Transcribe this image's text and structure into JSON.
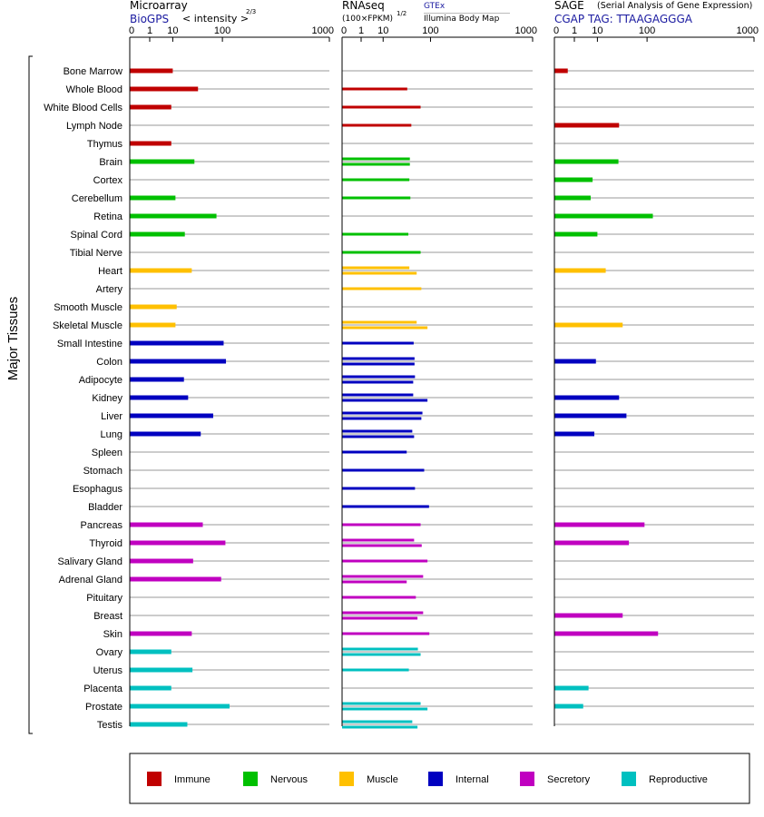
{
  "y_axis_label": "Major Tissues",
  "panels": {
    "microarray": {
      "title": "Microarray",
      "source": "BioGPS",
      "unit": "< intensity >",
      "exponent": "2/3"
    },
    "rnaseq": {
      "title": "RNAseq",
      "unit": "(100×FPKM)",
      "exponent": "1/2",
      "source_a": "GTEx",
      "source_b": "Illumina Body Map"
    },
    "sage": {
      "title": "SAGE",
      "subtitle": "(Serial Analysis of Gene Expression)",
      "tag": "CGAP TAG: TTAAGAGGGA"
    }
  },
  "legend": [
    {
      "key": "immune",
      "label": "Immune",
      "color": "#c00000"
    },
    {
      "key": "nervous",
      "label": "Nervous",
      "color": "#00c000"
    },
    {
      "key": "muscle",
      "label": "Muscle",
      "color": "#ffc000"
    },
    {
      "key": "internal",
      "label": "Internal",
      "color": "#0000c0"
    },
    {
      "key": "secretory",
      "label": "Secretory",
      "color": "#c000c0"
    },
    {
      "key": "reproductive",
      "label": "Reproductive",
      "color": "#00c0c0"
    }
  ],
  "chart_data": {
    "type": "bar",
    "orientation": "horizontal",
    "xscale": "power",
    "ticks": [
      "0",
      "1",
      "10",
      "100",
      "1000"
    ],
    "tick_values": [
      0,
      1,
      10,
      100,
      1000
    ],
    "xlim": [
      0,
      1000
    ],
    "categories": [
      "Bone Marrow",
      "Whole Blood",
      "White Blood Cells",
      "Lymph Node",
      "Thymus",
      "Brain",
      "Cortex",
      "Cerebellum",
      "Retina",
      "Spinal Cord",
      "Tibial Nerve",
      "Heart",
      "Artery",
      "Smooth Muscle",
      "Skeletal Muscle",
      "Small Intestine",
      "Colon",
      "Adipocyte",
      "Kidney",
      "Liver",
      "Lung",
      "Spleen",
      "Stomach",
      "Esophagus",
      "Bladder",
      "Pancreas",
      "Thyroid",
      "Salivary Gland",
      "Adrenal Gland",
      "Pituitary",
      "Breast",
      "Skin",
      "Ovary",
      "Uterus",
      "Placenta",
      "Prostate",
      "Testis"
    ],
    "groups": [
      "immune",
      "immune",
      "immune",
      "immune",
      "immune",
      "nervous",
      "nervous",
      "nervous",
      "nervous",
      "nervous",
      "nervous",
      "muscle",
      "muscle",
      "muscle",
      "muscle",
      "internal",
      "internal",
      "internal",
      "internal",
      "internal",
      "internal",
      "internal",
      "internal",
      "internal",
      "internal",
      "secretory",
      "secretory",
      "secretory",
      "secretory",
      "secretory",
      "secretory",
      "secretory",
      "reproductive",
      "reproductive",
      "reproductive",
      "reproductive",
      "reproductive"
    ],
    "series": [
      {
        "name": "Microarray",
        "values": [
          10,
          40,
          9,
          null,
          9,
          34,
          null,
          12,
          82,
          21,
          null,
          30,
          null,
          13,
          12,
          104,
          112,
          20,
          25,
          73,
          45,
          null,
          null,
          null,
          null,
          49,
          110,
          32,
          96,
          null,
          null,
          30,
          9,
          31,
          9,
          125,
          24
        ]
      },
      {
        "name": "GTEx",
        "values": [
          null,
          40,
          70,
          null,
          null,
          45,
          null,
          null,
          null,
          null,
          null,
          45,
          null,
          null,
          60,
          null,
          null,
          null,
          null,
          null,
          null,
          null,
          null,
          null,
          null,
          null,
          null,
          null,
          null,
          null,
          null,
          null,
          null,
          null,
          null,
          null,
          null
        ]
      },
      {
        "name": "Illumina Body Map",
        "values": [
          null,
          null,
          null,
          null,
          null,
          45,
          null,
          null,
          null,
          null,
          null,
          null,
          null,
          null,
          null,
          null,
          null,
          null,
          null,
          null,
          null,
          null,
          null,
          null,
          null,
          null,
          null,
          null,
          null,
          null,
          null,
          null,
          null,
          null,
          null,
          null,
          null
        ]
      },
      {
        "name": "RNAseq",
        "values": [
          [],
          [
            40
          ],
          [
            70
          ],
          [
            48
          ],
          [],
          [
            45,
            45
          ],
          [
            44
          ],
          [
            46
          ],
          [],
          [
            42
          ],
          [
            70
          ],
          [
            44,
            60
          ],
          [
            72
          ],
          [],
          [
            60,
            90
          ],
          [
            53
          ],
          [
            55,
            55
          ],
          [
            56,
            52
          ],
          [
            52,
            90
          ],
          [
            75,
            72
          ],
          [
            50,
            54
          ],
          [
            39
          ],
          [
            80
          ],
          [
            56
          ],
          [
            95
          ],
          [
            70
          ],
          [
            54,
            73
          ],
          [
            90
          ],
          [
            77,
            39
          ],
          [
            58
          ],
          [
            77,
            62
          ],
          [
            96
          ],
          [
            63,
            70
          ],
          [
            43
          ],
          [],
          [
            70,
            90
          ],
          [
            50,
            62
          ]
        ]
      },
      {
        "name": "SAGE",
        "values": [
          0.3,
          null,
          null,
          34,
          null,
          33,
          7,
          6,
          120,
          10,
          null,
          17,
          null,
          null,
          40,
          null,
          9,
          null,
          34,
          47,
          8,
          null,
          null,
          null,
          null,
          92,
          52,
          null,
          null,
          null,
          40,
          140,
          null,
          null,
          5,
          3,
          null
        ]
      }
    ]
  }
}
